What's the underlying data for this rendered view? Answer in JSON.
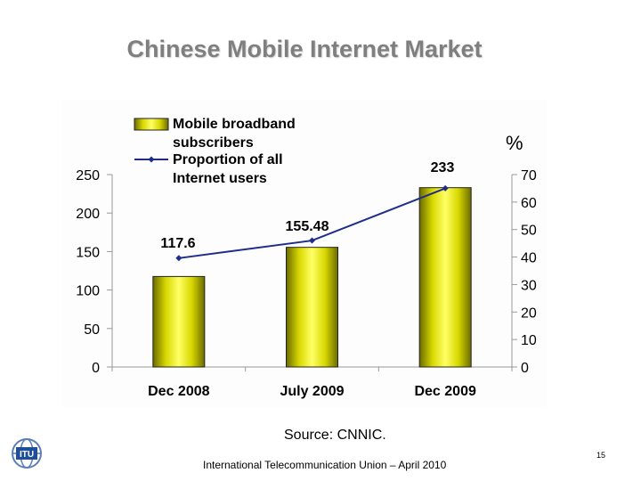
{
  "slide": {
    "title": "Chinese Mobile Internet Market",
    "source": "Source: CNNIC.",
    "footer": "International Telecommunication Union – April 2010",
    "page_number": "15",
    "logo_text": "ITU"
  },
  "chart_data": {
    "type": "bar",
    "categories": [
      "Dec 2008",
      "July 2009",
      "Dec 2009"
    ],
    "series": [
      {
        "name": "Mobile broadband subscribers",
        "kind": "bar",
        "axis": "left",
        "values": [
          117.6,
          155.48,
          233
        ],
        "labels": [
          "117.6",
          "155.48",
          "233"
        ],
        "color": "#e6e600"
      },
      {
        "name": "Proportion of all Internet users",
        "kind": "line",
        "axis": "right",
        "values": [
          39.6,
          46.0,
          65.0
        ],
        "color": "#1f2d8a"
      }
    ],
    "legend_lines": [
      [
        "Mobile broadband",
        "subscribers"
      ],
      [
        "Proportion of all",
        "Internet users"
      ]
    ],
    "y_left": {
      "min": 0,
      "max": 250,
      "ticks": [
        0,
        50,
        100,
        150,
        200,
        250
      ]
    },
    "y_right": {
      "label": "%",
      "min": 0,
      "max": 70,
      "ticks": [
        0,
        10,
        20,
        30,
        40,
        50,
        60,
        70
      ]
    },
    "legend_position": "top-left",
    "grid": false
  }
}
